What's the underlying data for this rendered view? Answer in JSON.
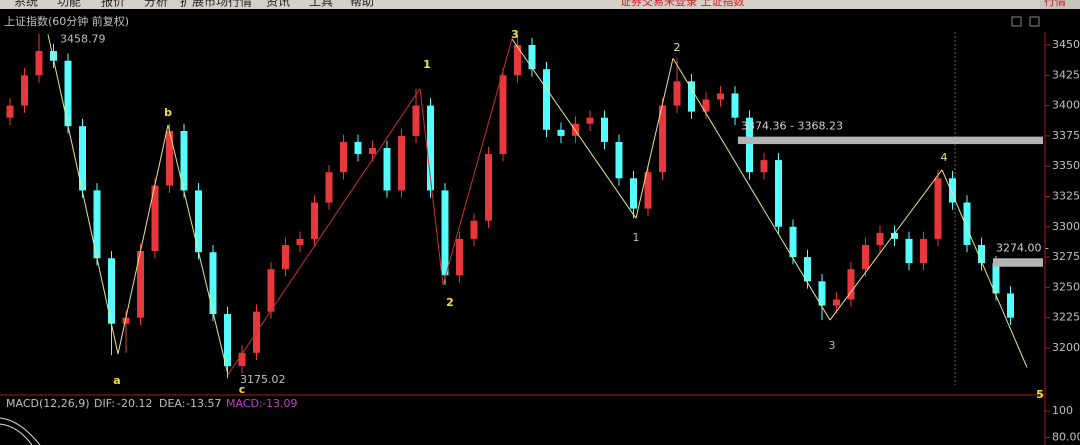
{
  "menu": [
    "系统",
    "功能",
    "报价",
    "分析",
    "扩展市场行情",
    "资讯",
    "工具",
    "帮助"
  ],
  "status": "证券交易未登录 上证指数",
  "tab": "行情",
  "chart_data": {
    "type": "candlestick",
    "title": "上证指数(60分钟 前复权)",
    "ylim": [
      3161.2,
      3460.7
    ],
    "yticks": [
      3450,
      3425,
      3400,
      3375,
      3350,
      3325,
      3300,
      3275,
      3250,
      3225,
      3200
    ],
    "up_color": "#e8383d",
    "down_color": "#54ffff",
    "candles": [
      [
        3390,
        3400,
        3384,
        3406
      ],
      [
        3400,
        3425,
        3394,
        3431
      ],
      [
        3425,
        3445,
        3419,
        3459
      ],
      [
        3445,
        3437,
        3431,
        3451
      ],
      [
        3437,
        3383,
        3377,
        3443
      ],
      [
        3383,
        3330,
        3324,
        3389
      ],
      [
        3330,
        3274,
        3268,
        3336
      ],
      [
        3274,
        3220,
        3194,
        3280
      ],
      [
        3220,
        3225,
        3196,
        3231
      ],
      [
        3225,
        3280,
        3219,
        3286
      ],
      [
        3280,
        3334,
        3274,
        3340
      ],
      [
        3334,
        3379,
        3328,
        3385
      ],
      [
        3379,
        3330,
        3324,
        3385
      ],
      [
        3330,
        3279,
        3273,
        3336
      ],
      [
        3279,
        3228,
        3222,
        3285
      ],
      [
        3228,
        3185,
        3175,
        3234
      ],
      [
        3185,
        3196,
        3179,
        3202
      ],
      [
        3196,
        3230,
        3190,
        3236
      ],
      [
        3230,
        3265,
        3224,
        3271
      ],
      [
        3265,
        3285,
        3259,
        3291
      ],
      [
        3285,
        3290,
        3279,
        3296
      ],
      [
        3290,
        3320,
        3284,
        3326
      ],
      [
        3320,
        3345,
        3314,
        3351
      ],
      [
        3345,
        3370,
        3339,
        3376
      ],
      [
        3370,
        3360,
        3354,
        3376
      ],
      [
        3360,
        3365,
        3354,
        3371
      ],
      [
        3365,
        3330,
        3324,
        3371
      ],
      [
        3330,
        3375,
        3324,
        3381
      ],
      [
        3375,
        3400,
        3369,
        3414
      ],
      [
        3400,
        3330,
        3324,
        3406
      ],
      [
        3330,
        3260,
        3252,
        3336
      ],
      [
        3260,
        3290,
        3254,
        3296
      ],
      [
        3290,
        3305,
        3284,
        3311
      ],
      [
        3305,
        3360,
        3299,
        3366
      ],
      [
        3360,
        3425,
        3354,
        3431
      ],
      [
        3425,
        3450,
        3419,
        3458
      ],
      [
        3450,
        3430,
        3424,
        3456
      ],
      [
        3430,
        3380,
        3374,
        3436
      ],
      [
        3380,
        3375,
        3369,
        3386
      ],
      [
        3375,
        3385,
        3369,
        3391
      ],
      [
        3385,
        3390,
        3379,
        3396
      ],
      [
        3390,
        3370,
        3364,
        3396
      ],
      [
        3370,
        3340,
        3334,
        3376
      ],
      [
        3340,
        3315,
        3307,
        3346
      ],
      [
        3315,
        3345,
        3309,
        3351
      ],
      [
        3345,
        3400,
        3339,
        3406
      ],
      [
        3400,
        3420,
        3394,
        3439
      ],
      [
        3420,
        3395,
        3389,
        3426
      ],
      [
        3395,
        3405,
        3389,
        3411
      ],
      [
        3405,
        3410,
        3399,
        3416
      ],
      [
        3410,
        3390,
        3384,
        3416
      ],
      [
        3390,
        3345,
        3339,
        3396
      ],
      [
        3345,
        3355,
        3339,
        3361
      ],
      [
        3355,
        3300,
        3294,
        3361
      ],
      [
        3300,
        3275,
        3269,
        3306
      ],
      [
        3275,
        3255,
        3249,
        3281
      ],
      [
        3255,
        3235,
        3223,
        3261
      ],
      [
        3235,
        3240,
        3229,
        3246
      ],
      [
        3240,
        3265,
        3234,
        3271
      ],
      [
        3265,
        3285,
        3259,
        3291
      ],
      [
        3285,
        3295,
        3279,
        3301
      ],
      [
        3295,
        3290,
        3284,
        3301
      ],
      [
        3290,
        3270,
        3264,
        3296
      ],
      [
        3270,
        3290,
        3264,
        3296
      ],
      [
        3290,
        3340,
        3284,
        3347
      ],
      [
        3340,
        3320,
        3314,
        3346
      ],
      [
        3320,
        3285,
        3279,
        3326
      ],
      [
        3285,
        3270,
        3264,
        3291
      ],
      [
        3270,
        3245,
        3239,
        3276
      ],
      [
        3245,
        3225,
        3219,
        3251
      ]
    ],
    "wave": {
      "values": [
        3458.79,
        3195,
        3384,
        3178,
        3414,
        3252,
        3455,
        3307,
        3439,
        3223,
        3347,
        3184
      ],
      "labels": [
        null,
        "a",
        "b",
        "c",
        "1",
        "2",
        "3",
        "1",
        "2",
        "3",
        "4",
        "5"
      ],
      "colors": [
        "#e6e68c",
        "#e6e68c",
        "#e6e68c",
        "#c83232",
        "#c83232",
        "#c83232",
        "#e6e68c",
        "#e6e68c",
        "#e6e68c",
        "#e6e68c",
        "#e6e68c"
      ]
    },
    "high_mark": 3458.79,
    "low_mark": 3175.02,
    "ranges": [
      {
        "label": "3374.36 - 3368.23",
        "high": 3374.36,
        "low": 3368.23
      },
      {
        "label": "3274.00 -",
        "high": 3274.0,
        "low": 3267
      }
    ]
  },
  "macd": {
    "label": "MACD(12,26,9)",
    "dif_label": "DIF:",
    "dif": -20.12,
    "dea_label": "DEA:",
    "dea": -13.57,
    "macd_label": "MACD:",
    "macd": -13.09,
    "ylim": [
      74.4,
      112
    ],
    "yticks": [
      100,
      {
        "value": 80,
        "label": "80.00"
      }
    ]
  }
}
